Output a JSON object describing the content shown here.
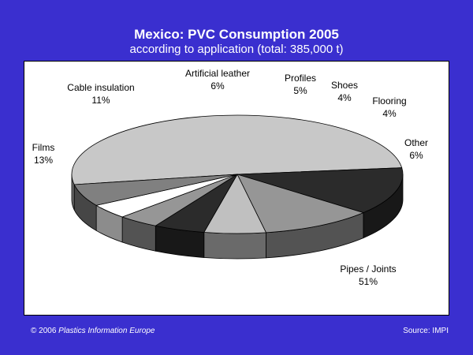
{
  "chart_data": {
    "type": "pie",
    "title": "Mexico: PVC Consumption 2005",
    "subtitle": "according to application (total: 385,000 t)",
    "unit": "%",
    "slices": [
      {
        "label": "Pipes / Joints",
        "value": 51,
        "value_label": "51%",
        "color": "#c8c8c8"
      },
      {
        "label": "Films",
        "value": 13,
        "value_label": "13%",
        "color": "#2b2b2b"
      },
      {
        "label": "Cable insulation",
        "value": 11,
        "value_label": "11%",
        "color": "#969696"
      },
      {
        "label": "Artificial leather",
        "value": 6,
        "value_label": "6%",
        "color": "#c0c0c0"
      },
      {
        "label": "Profiles",
        "value": 5,
        "value_label": "5%",
        "color": "#2b2b2b"
      },
      {
        "label": "Shoes",
        "value": 4,
        "value_label": "4%",
        "color": "#969696"
      },
      {
        "label": "Flooring",
        "value": 4,
        "value_label": "4%",
        "color": "#ffffff"
      },
      {
        "label": "Other",
        "value": 6,
        "value_label": "6%",
        "color": "#808080"
      }
    ]
  },
  "footer": {
    "copyright_prefix": "© 2006 ",
    "copyright_org": "Plastics Information Europe",
    "source": "Source: IMPI"
  }
}
